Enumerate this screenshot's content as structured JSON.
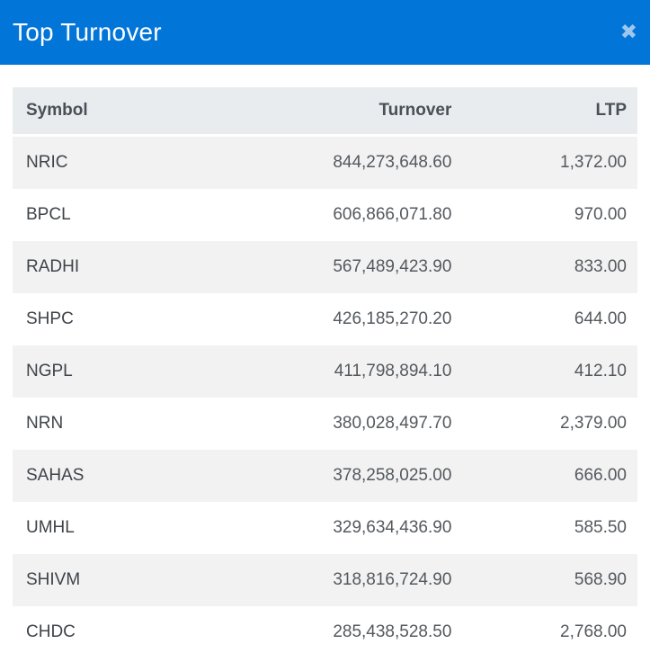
{
  "modal": {
    "title": "Top Turnover",
    "close_glyph": "✖",
    "colors": {
      "header_bg": "#0275d8",
      "header_text": "#ffffff",
      "close_icon": "#9dc7ec",
      "thead_bg": "#e9ecef",
      "thead_text": "#495057",
      "row_stripe_bg": "#f2f2f2",
      "symbol_text": "#3e444a",
      "number_text": "#54595e"
    }
  },
  "table": {
    "columns": [
      "Symbol",
      "Turnover",
      "LTP"
    ],
    "rows": [
      {
        "symbol": "NRIC",
        "turnover": "844,273,648.60",
        "ltp": "1,372.00"
      },
      {
        "symbol": "BPCL",
        "turnover": "606,866,071.80",
        "ltp": "970.00"
      },
      {
        "symbol": "RADHI",
        "turnover": "567,489,423.90",
        "ltp": "833.00"
      },
      {
        "symbol": "SHPC",
        "turnover": "426,185,270.20",
        "ltp": "644.00"
      },
      {
        "symbol": "NGPL",
        "turnover": "411,798,894.10",
        "ltp": "412.10"
      },
      {
        "symbol": "NRN",
        "turnover": "380,028,497.70",
        "ltp": "2,379.00"
      },
      {
        "symbol": "SAHAS",
        "turnover": "378,258,025.00",
        "ltp": "666.00"
      },
      {
        "symbol": "UMHL",
        "turnover": "329,634,436.90",
        "ltp": "585.50"
      },
      {
        "symbol": "SHIVM",
        "turnover": "318,816,724.90",
        "ltp": "568.90"
      },
      {
        "symbol": "CHDC",
        "turnover": "285,438,528.50",
        "ltp": "2,768.00"
      }
    ]
  }
}
